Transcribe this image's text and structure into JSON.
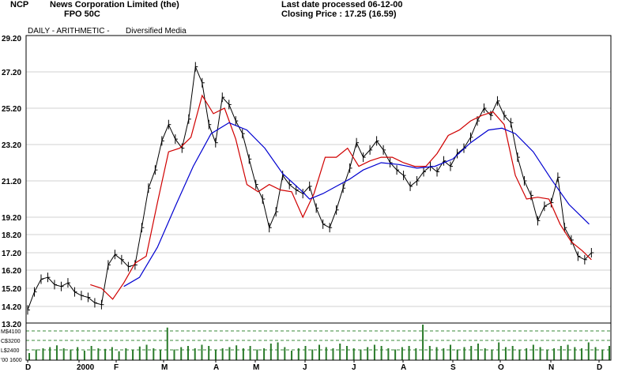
{
  "header": {
    "ticker": "NCP",
    "company": "News Corporation Limited (the)",
    "security": "FPO 50C",
    "last_date": "Last date processed 06-12-00",
    "closing": "Closing Price : 17.25  (16.59)"
  },
  "chart_header": {
    "mode": "DAILY - ARITHMETIC -",
    "sector": "Diversified Media"
  },
  "chart_data": {
    "type": "line",
    "price_axis": {
      "ticks": [
        "29.20",
        "27.20",
        "25.20",
        "23.20",
        "21.20",
        "19.20",
        "18.20",
        "17.20",
        "16.20",
        "15.20",
        "14.20",
        "13.20"
      ],
      "ylim": [
        13.2,
        29.2
      ],
      "grid": true
    },
    "x_ticks": [
      "D",
      "2000",
      "F",
      "M",
      "A",
      "M",
      "J",
      "J",
      "A",
      "S",
      "O",
      "N",
      "D"
    ],
    "series": [
      {
        "color": "#000000",
        "x": [
          0,
          3,
          6,
          9,
          12,
          15,
          18,
          21,
          24,
          27,
          30,
          33,
          36,
          39,
          42,
          45,
          48,
          51,
          54,
          57,
          60,
          63,
          66,
          69,
          72,
          75,
          78,
          81,
          84,
          87,
          90,
          93,
          96,
          99,
          102,
          105,
          108,
          111,
          114,
          117,
          120,
          123,
          126,
          129,
          132,
          135,
          138,
          141,
          144,
          147,
          150,
          153,
          156,
          159,
          162,
          165,
          168,
          171,
          174,
          177,
          180,
          183,
          186,
          189,
          192,
          195,
          198,
          201,
          204,
          207,
          210,
          213,
          216,
          219,
          222,
          225,
          228,
          231,
          234,
          237,
          240,
          243,
          246,
          249,
          252
        ],
        "values": [
          14.0,
          15.0,
          15.7,
          15.8,
          15.4,
          15.3,
          15.5,
          15.0,
          14.8,
          14.7,
          14.4,
          14.3,
          16.5,
          17.1,
          16.8,
          16.4,
          16.5,
          18.6,
          20.8,
          21.8,
          23.4,
          24.3,
          23.5,
          23.0,
          24.6,
          27.5,
          26.6,
          24.3,
          23.3,
          25.8,
          25.4,
          24.5,
          23.8,
          22.4,
          21.0,
          20.2,
          18.6,
          19.5,
          21.5,
          21.0,
          20.7,
          20.5,
          20.9,
          19.7,
          18.8,
          18.6,
          19.6,
          20.8,
          21.9,
          23.3,
          22.5,
          22.9,
          23.4,
          22.9,
          22.2,
          21.8,
          21.5,
          20.9,
          21.2,
          21.7,
          22.0,
          21.7,
          22.3,
          22.0,
          22.7,
          23.0,
          23.6,
          24.5,
          25.2,
          24.8,
          25.6,
          24.8,
          24.4,
          22.5,
          21.2,
          20.4,
          19.0,
          19.8,
          20.0,
          21.4,
          18.6,
          17.9,
          17.0,
          16.8,
          17.2
        ]
      },
      {
        "color": "#d00000",
        "x": [
          28,
          33,
          38,
          43,
          48,
          53,
          58,
          63,
          68,
          73,
          78,
          83,
          88,
          93,
          98,
          103,
          108,
          113,
          118,
          123,
          128,
          133,
          138,
          143,
          148,
          153,
          158,
          163,
          168,
          173,
          178,
          183,
          188,
          193,
          198,
          203,
          208,
          213,
          218,
          223,
          228,
          233,
          238,
          243,
          248,
          252
        ],
        "values": [
          15.4,
          15.2,
          14.6,
          15.5,
          16.6,
          17.0,
          20.0,
          22.8,
          23.0,
          23.6,
          25.9,
          24.9,
          25.2,
          23.5,
          21.0,
          20.6,
          21.0,
          20.7,
          20.6,
          19.2,
          20.5,
          22.5,
          22.5,
          23.0,
          22.0,
          22.3,
          22.5,
          22.5,
          22.2,
          22.0,
          22.0,
          22.7,
          23.7,
          24.0,
          24.5,
          24.8,
          25.0,
          24.3,
          21.5,
          20.2,
          20.3,
          20.2,
          18.8,
          17.8,
          17.3,
          16.8
        ]
      },
      {
        "color": "#0000d0",
        "x": [
          43,
          50,
          58,
          66,
          74,
          82,
          90,
          98,
          106,
          114,
          122,
          126,
          132,
          138,
          144,
          150,
          158,
          166,
          174,
          182,
          190,
          198,
          206,
          212,
          218,
          226,
          234,
          242,
          251
        ],
        "values": [
          15.3,
          15.8,
          17.5,
          19.8,
          22.0,
          23.8,
          24.4,
          24.0,
          23.0,
          21.6,
          20.7,
          20.2,
          20.5,
          20.9,
          21.3,
          21.8,
          22.2,
          22.1,
          21.9,
          22.0,
          22.4,
          23.3,
          24.0,
          24.1,
          23.8,
          22.8,
          21.3,
          19.9,
          18.8
        ]
      }
    ],
    "volume_axis": {
      "ticks": [
        "M$4100",
        "C$3200",
        "L$2400",
        "'00 1600"
      ]
    },
    "volume_values": [
      12,
      18,
      20,
      22,
      25,
      20,
      18,
      22,
      16,
      24,
      20,
      19,
      22,
      15,
      20,
      18,
      23,
      26,
      20,
      18,
      55,
      18,
      22,
      24,
      20,
      26,
      24,
      18,
      20,
      22,
      25,
      20,
      24,
      18,
      20,
      28,
      30,
      22,
      16,
      20,
      24,
      18,
      26,
      22,
      20,
      28,
      24,
      20,
      18,
      22,
      26,
      24,
      20,
      18,
      22,
      24,
      20,
      72,
      24,
      22,
      20,
      26,
      18,
      22,
      24,
      28,
      20,
      18,
      30,
      22,
      24,
      18,
      20,
      26,
      22,
      18,
      20,
      24,
      26,
      22,
      20,
      30,
      22,
      18,
      24
    ]
  }
}
